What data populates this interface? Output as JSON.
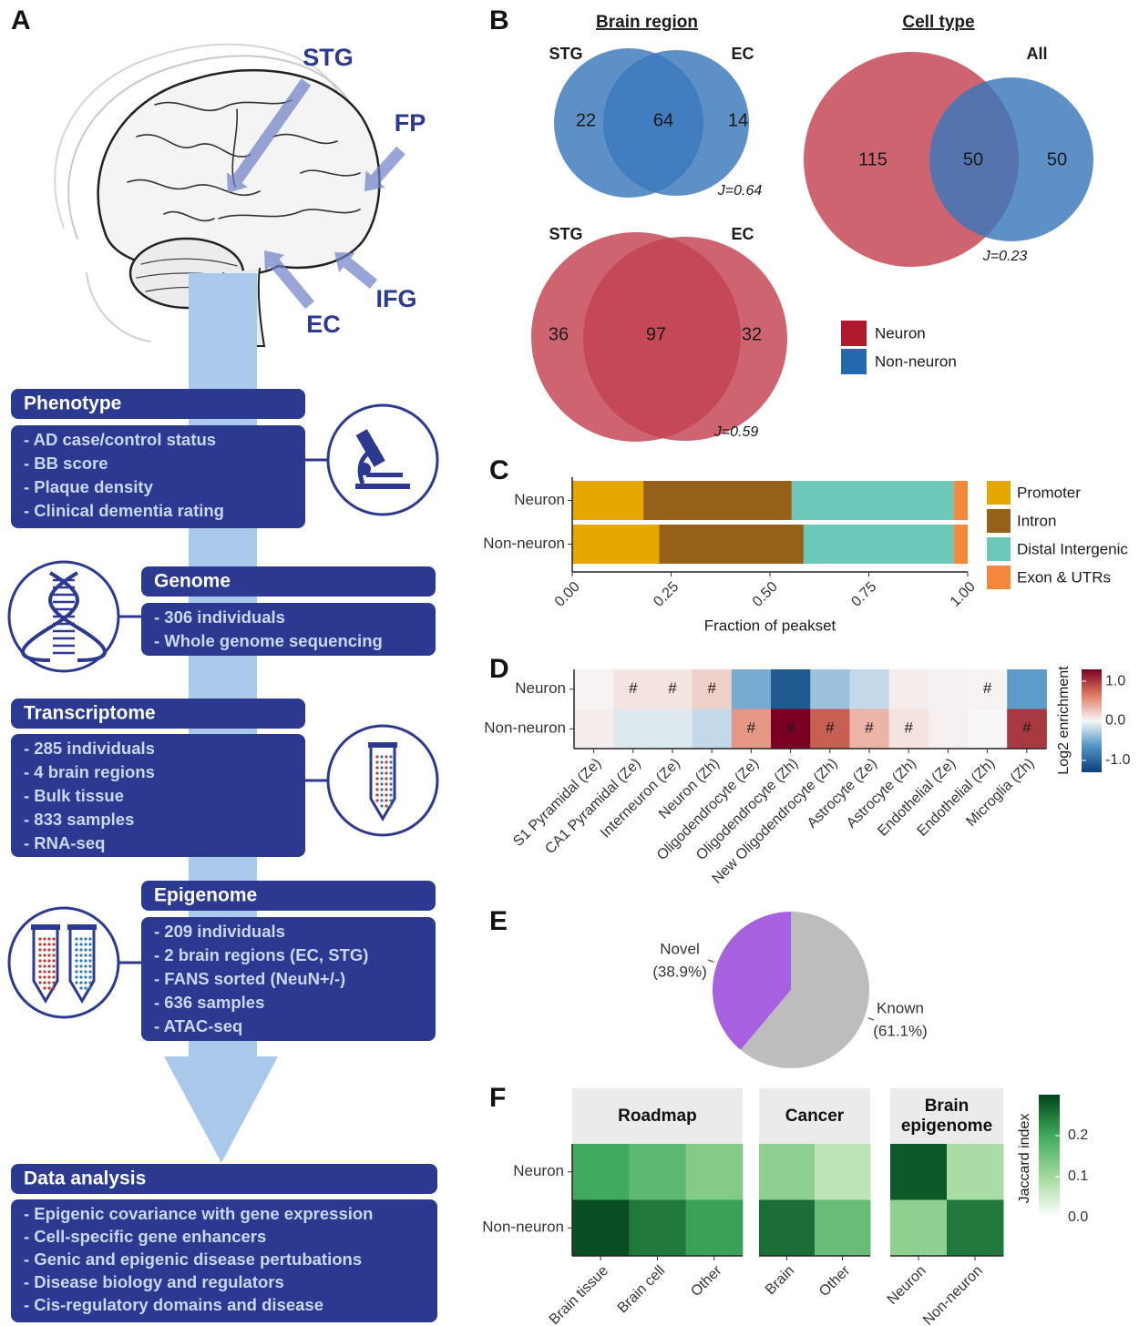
{
  "workflow": {
    "label": "A",
    "regions": [
      "STG",
      "FP",
      "EC",
      "IFG"
    ],
    "steps": [
      {
        "title": "Phenotype",
        "items": [
          "- AD case/control status",
          "- BB score",
          "- Plaque density",
          "- Clinical dementia rating"
        ]
      },
      {
        "title": "Genome",
        "items": [
          "- 306 individuals",
          "- Whole genome sequencing"
        ]
      },
      {
        "title": "Transcriptome",
        "items": [
          "- 285 individuals",
          "- 4 brain regions",
          "- Bulk tissue",
          "- 833 samples",
          "- RNA-seq"
        ]
      },
      {
        "title": "Epigenome",
        "items": [
          "- 209 individuals",
          "- 2 brain regions (EC, STG)",
          "- FANS sorted (NeuN+/-)",
          "- 636 samples",
          "- ATAC-seq"
        ]
      },
      {
        "title": "Data analysis",
        "items": [
          "- Epigenic covariance with gene expression",
          "- Cell-specific gene enhancers",
          "- Genic and epigenic disease pertubations",
          "- Disease biology and regulators",
          "- Cis-regulatory domains and disease"
        ]
      }
    ]
  },
  "chart_data": [
    {
      "type": "venn",
      "label": "B",
      "title": "Brain region",
      "venns": [
        {
          "sets": [
            "STG",
            "EC"
          ],
          "values": [
            22,
            64,
            14
          ],
          "annotation": "J=0.64",
          "colors": [
            "#3a78bc",
            "#3a78bc"
          ]
        },
        {
          "sets": [
            "STG",
            "EC"
          ],
          "values": [
            36,
            97,
            32
          ],
          "annotation": "J=0.59",
          "colors": [
            "#c2424f",
            "#c2424f"
          ]
        }
      ]
    },
    {
      "type": "venn",
      "title": "Cell type",
      "venns": [
        {
          "sets": [
            null,
            "All"
          ],
          "values": [
            115,
            50,
            50
          ],
          "annotation": "J=0.23",
          "colors": [
            "#c2424f",
            "#3a78bc"
          ]
        }
      ],
      "legend": [
        {
          "name": "Neuron",
          "color": "#b0182d"
        },
        {
          "name": "Non-neuron",
          "color": "#2369b0"
        }
      ]
    },
    {
      "type": "stacked-bar",
      "label": "C",
      "orientation": "horizontal",
      "categories": [
        "Neuron",
        "Non-neuron"
      ],
      "series": [
        {
          "name": "Promoter",
          "color": "#e6a800",
          "values": [
            0.18,
            0.22
          ]
        },
        {
          "name": "Intron",
          "color": "#94601a",
          "values": [
            0.375,
            0.365
          ]
        },
        {
          "name": "Distal Intergenic",
          "color": "#6cc8b8",
          "values": [
            0.41,
            0.38
          ]
        },
        {
          "name": "Exon & UTRs",
          "color": "#f3873a",
          "values": [
            0.035,
            0.035
          ]
        }
      ],
      "xlabel": "Fraction of peakset",
      "xlim": [
        0,
        1
      ],
      "xticks": [
        {
          "value": 0,
          "label": "0.00"
        },
        {
          "value": 0.25,
          "label": "0.25"
        },
        {
          "value": 0.5,
          "label": "0.50"
        },
        {
          "value": 0.75,
          "label": "0.75"
        },
        {
          "value": 1,
          "label": "1.00"
        }
      ]
    },
    {
      "type": "heatmap",
      "label": "D",
      "rows": [
        "Neuron",
        "Non-neuron"
      ],
      "categories": [
        "S1 Pyramidal (Ze)",
        "CA1 Pyramidal (Ze)",
        "Interneuron (Ze)",
        "Neuron (Zh)",
        "Oligodendrocyte (Ze)",
        "Oligodendrocyte (Zh)",
        "New Oligodendrocyte (Zh)",
        "Astrocyte (Ze)",
        "Astrocyte (Zh)",
        "Endothelial (Ze)",
        "Endothelial (Zh)",
        "Microglia (Zh)"
      ],
      "values": [
        [
          0.02,
          0.1,
          0.1,
          0.2,
          -0.5,
          -1.1,
          -0.35,
          -0.2,
          0.05,
          0.03,
          0.02,
          -0.6
        ],
        [
          0.05,
          -0.1,
          -0.1,
          -0.2,
          0.5,
          1.3,
          0.8,
          0.35,
          0.1,
          0.03,
          0.0,
          1.0
        ]
      ],
      "annotations": [
        [
          null,
          "#",
          "#",
          "#",
          null,
          null,
          null,
          null,
          null,
          null,
          "#",
          null
        ],
        [
          null,
          null,
          null,
          null,
          "#",
          "#",
          "#",
          "#",
          "#",
          null,
          null,
          "#"
        ]
      ],
      "colorbar_title": "Log2 enrichment",
      "clim": [
        -1.3,
        1.3
      ],
      "color_scale": [
        "#0d3f7a",
        "#4f93c6",
        "#f7f7f7",
        "#e07b62",
        "#7a0022"
      ],
      "cticks": [
        {
          "value": 1,
          "label": "1.0"
        },
        {
          "value": 0,
          "label": "0.0"
        },
        {
          "value": -1,
          "label": "-1.0"
        }
      ]
    },
    {
      "type": "pie",
      "label": "E",
      "categories": [
        "Novel",
        "Known"
      ],
      "values": [
        38.9,
        61.1
      ],
      "value_labels": [
        "(38.9%)",
        "(61.1%)"
      ],
      "colors": [
        "#a760e0",
        "#bdbdbd"
      ]
    },
    {
      "type": "faceted-heatmap",
      "label": "F",
      "rows": [
        "Neuron",
        "Non-neuron"
      ],
      "facets": [
        {
          "name": "Roadmap",
          "categories": [
            "Brain tissue",
            "Brain cell",
            "Other"
          ],
          "values": [
            [
              0.2,
              0.17,
              0.13
            ],
            [
              0.29,
              0.25,
              0.21
            ]
          ]
        },
        {
          "name": "Cancer",
          "categories": [
            "Brain",
            "Other"
          ],
          "values": [
            [
              0.12,
              0.07
            ],
            [
              0.26,
              0.16
            ]
          ]
        },
        {
          "name": "Brain epigenome",
          "categories": [
            "Neuron",
            "Non-neuron"
          ],
          "values": [
            [
              0.28,
              0.09
            ],
            [
              0.12,
              0.25
            ]
          ]
        }
      ],
      "colorbar_title": "Jaccard index",
      "clim": [
        0,
        0.3
      ],
      "color_scale": [
        "#ffffff",
        "#a1d99b",
        "#41ab5d",
        "#00441b"
      ],
      "cticks": [
        {
          "value": 0.2,
          "label": "0.2"
        },
        {
          "value": 0.1,
          "label": "0.1"
        },
        {
          "value": 0,
          "label": "0.0"
        }
      ]
    }
  ]
}
